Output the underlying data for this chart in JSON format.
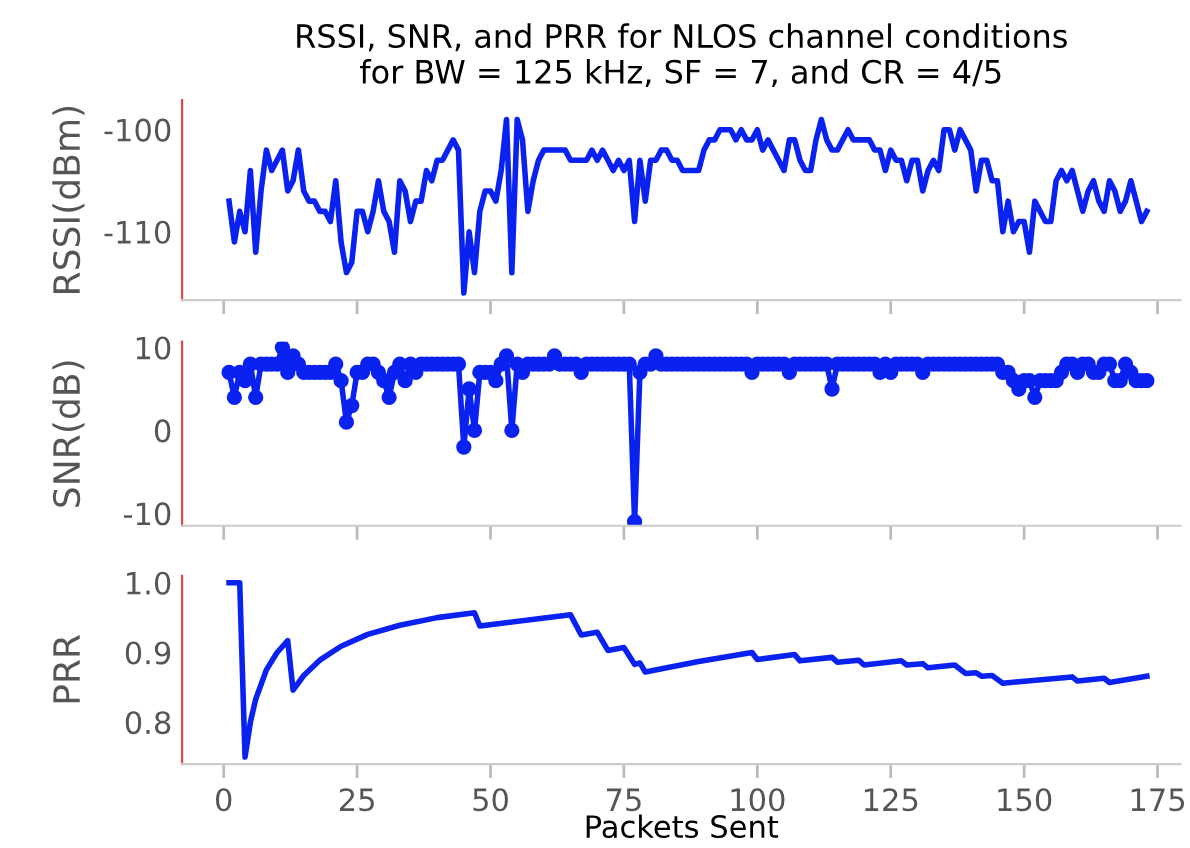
{
  "chart_data": [
    {
      "type": "line",
      "title": "RSSI, SNR, and PRR for NLOS channel conditions\nfor BW = 125 kHz, SF = 7, and CR = 4/5",
      "ylabel": "RSSI(dBm)",
      "x": [
        1,
        2,
        3,
        4,
        5,
        6,
        7,
        8,
        9,
        10,
        11,
        12,
        13,
        14,
        15,
        16,
        17,
        18,
        19,
        20,
        21,
        22,
        23,
        24,
        25,
        26,
        27,
        28,
        29,
        30,
        31,
        32,
        33,
        34,
        35,
        36,
        37,
        38,
        39,
        40,
        41,
        42,
        43,
        44,
        45,
        46,
        47,
        48,
        49,
        50,
        51,
        52,
        53,
        54,
        55,
        56,
        57,
        58,
        59,
        60,
        61,
        62,
        63,
        64,
        65,
        66,
        67,
        68,
        69,
        70,
        71,
        72,
        73,
        74,
        75,
        76,
        77,
        78,
        79,
        80,
        81,
        82,
        83,
        84,
        85,
        86,
        87,
        88,
        89,
        90,
        91,
        92,
        93,
        94,
        95,
        96,
        97,
        98,
        99,
        100,
        101,
        102,
        103,
        104,
        105,
        106,
        107,
        108,
        109,
        110,
        111,
        112,
        113,
        114,
        115,
        116,
        117,
        118,
        119,
        120,
        121,
        122,
        123,
        124,
        125,
        126,
        127,
        128,
        129,
        130,
        131,
        132,
        133,
        134,
        135,
        136,
        137,
        138,
        139,
        140,
        141,
        142,
        143,
        144,
        145,
        146,
        147,
        148,
        149,
        150,
        151,
        152,
        153,
        154,
        155,
        156,
        157,
        158,
        159,
        160,
        161,
        162,
        163,
        164,
        165,
        166,
        167,
        168,
        169,
        170,
        171,
        172,
        173
      ],
      "series": [
        {
          "color": "#0a22f0",
          "values": [
            -107,
            -111,
            -108,
            -110,
            -104,
            -112,
            -106,
            -102,
            -104,
            -103,
            -102,
            -106,
            -105,
            -102,
            -106,
            -107,
            -107,
            -108,
            -108,
            -109,
            -105,
            -111,
            -114,
            -113,
            -108,
            -108,
            -110,
            -108,
            -105,
            -108,
            -109,
            -112,
            -105,
            -106,
            -109,
            -107,
            -107,
            -104,
            -105,
            -103,
            -103,
            -102,
            -101,
            -102,
            -116,
            -110,
            -114,
            -108,
            -106,
            -106,
            -107,
            -104,
            -99,
            -114,
            -99,
            -101,
            -108,
            -105,
            -103,
            -102,
            -102,
            -102,
            -102,
            -102,
            -103,
            -103,
            -103,
            -103,
            -102,
            -103,
            -102,
            -103,
            -104,
            -103,
            -104,
            -103,
            -109,
            -103,
            -107,
            -103,
            -103,
            -102,
            -102,
            -103,
            -103,
            -104,
            -104,
            -104,
            -104,
            -102,
            -101,
            -101,
            -100,
            -100,
            -100,
            -101,
            -100,
            -101,
            -101,
            -100,
            -102,
            -101,
            -102,
            -103,
            -104,
            -101,
            -101,
            -103,
            -104,
            -104,
            -101,
            -99,
            -101,
            -102,
            -102,
            -101,
            -100,
            -101,
            -101,
            -101,
            -101,
            -102,
            -102,
            -104,
            -102,
            -103,
            -103,
            -105,
            -103,
            -103,
            -106,
            -104,
            -103,
            -104,
            -100,
            -100,
            -102,
            -100,
            -101,
            -102,
            -106,
            -103,
            -103,
            -105,
            -105,
            -110,
            -107,
            -110,
            -109,
            -109,
            -112,
            -107,
            -108,
            -109,
            -109,
            -105,
            -104,
            -105,
            -104,
            -106,
            -108,
            -106,
            -105,
            -107,
            -108,
            -105,
            -106,
            -108,
            -107,
            -105,
            -107,
            -109,
            -108
          ]
        }
      ],
      "xlim": [
        -7.8,
        179.3
      ],
      "xticks": [
        0,
        25,
        50,
        75,
        100,
        125,
        150,
        175
      ],
      "ylim": [
        -116.7,
        -97.1
      ],
      "yticks": [
        -110,
        -100
      ],
      "tick_labels": "y",
      "grid": false,
      "legend": false
    },
    {
      "type": "line",
      "ylabel": "SNR(dB)",
      "marker": "circle",
      "x": [
        1,
        2,
        3,
        4,
        5,
        6,
        7,
        8,
        9,
        10,
        11,
        12,
        13,
        14,
        15,
        16,
        17,
        18,
        19,
        20,
        21,
        22,
        23,
        24,
        25,
        26,
        27,
        28,
        29,
        30,
        31,
        32,
        33,
        34,
        35,
        36,
        37,
        38,
        39,
        40,
        41,
        42,
        43,
        44,
        45,
        46,
        47,
        48,
        49,
        50,
        51,
        52,
        53,
        54,
        55,
        56,
        57,
        58,
        59,
        60,
        61,
        62,
        63,
        64,
        65,
        66,
        67,
        68,
        69,
        70,
        71,
        72,
        73,
        74,
        75,
        76,
        77,
        78,
        79,
        80,
        81,
        82,
        83,
        84,
        85,
        86,
        87,
        88,
        89,
        90,
        91,
        92,
        93,
        94,
        95,
        96,
        97,
        98,
        99,
        100,
        101,
        102,
        103,
        104,
        105,
        106,
        107,
        108,
        109,
        110,
        111,
        112,
        113,
        114,
        115,
        116,
        117,
        118,
        119,
        120,
        121,
        122,
        123,
        124,
        125,
        126,
        127,
        128,
        129,
        130,
        131,
        132,
        133,
        134,
        135,
        136,
        137,
        138,
        139,
        140,
        141,
        142,
        143,
        144,
        145,
        146,
        147,
        148,
        149,
        150,
        151,
        152,
        153,
        154,
        155,
        156,
        157,
        158,
        159,
        160,
        161,
        162,
        163,
        164,
        165,
        166,
        167,
        168,
        169,
        170,
        171,
        172,
        173
      ],
      "series": [
        {
          "color": "#0a22f0",
          "values": [
            7,
            4,
            7,
            6,
            8,
            4,
            8,
            8,
            8,
            8,
            10,
            7,
            9,
            8,
            7,
            7,
            7,
            7,
            7,
            7,
            8,
            6,
            1,
            3,
            7,
            7,
            8,
            8,
            7,
            6,
            4,
            7,
            8,
            6,
            8,
            7,
            8,
            8,
            8,
            8,
            8,
            8,
            8,
            8,
            -2,
            5,
            0,
            7,
            7,
            7,
            6,
            8,
            9,
            0,
            8,
            7,
            8,
            8,
            8,
            8,
            8,
            9,
            8,
            8,
            8,
            8,
            7,
            8,
            8,
            8,
            8,
            8,
            8,
            8,
            8,
            8,
            -11,
            7,
            8,
            8,
            9,
            8,
            8,
            8,
            8,
            8,
            8,
            8,
            8,
            8,
            8,
            8,
            8,
            8,
            8,
            8,
            8,
            8,
            7,
            8,
            8,
            8,
            8,
            8,
            8,
            7,
            8,
            8,
            8,
            8,
            8,
            8,
            8,
            5,
            8,
            8,
            8,
            8,
            8,
            8,
            8,
            8,
            7,
            8,
            7,
            8,
            8,
            8,
            8,
            8,
            7,
            8,
            8,
            8,
            8,
            8,
            8,
            8,
            8,
            8,
            8,
            8,
            8,
            8,
            8,
            7,
            7,
            6,
            5,
            6,
            6,
            4,
            6,
            6,
            6,
            6,
            7,
            8,
            8,
            7,
            8,
            8,
            7,
            7,
            8,
            8,
            6,
            6,
            8,
            7,
            6,
            6,
            6
          ]
        }
      ],
      "xlim": [
        -7.8,
        179.3
      ],
      "xticks": [
        0,
        25,
        50,
        75,
        100,
        125,
        150,
        175
      ],
      "ylim": [
        -11.5,
        10.7
      ],
      "yticks": [
        -10,
        0,
        10
      ],
      "tick_labels": "y",
      "grid": false,
      "legend": false
    },
    {
      "type": "line",
      "ylabel": "PRR",
      "xlabel": "Packets Sent",
      "x": [
        1,
        3,
        4,
        5,
        6,
        8,
        10,
        12,
        13,
        15,
        18,
        22,
        27,
        33,
        40,
        47,
        48,
        65,
        67,
        70,
        72,
        75,
        77,
        78,
        79,
        89,
        99,
        100,
        107,
        108,
        114,
        115,
        119,
        120,
        127,
        128,
        131,
        132,
        137,
        139,
        141,
        142,
        144,
        146,
        159,
        160,
        165,
        166,
        173
      ],
      "series": [
        {
          "color": "#0a22f0",
          "values": [
            1.0,
            1.0,
            0.75,
            0.8,
            0.833,
            0.875,
            0.9,
            0.917,
            0.846,
            0.867,
            0.889,
            0.909,
            0.926,
            0.939,
            0.95,
            0.957,
            0.938,
            0.954,
            0.925,
            0.929,
            0.903,
            0.907,
            0.883,
            0.885,
            0.872,
            0.887,
            0.9,
            0.89,
            0.897,
            0.888,
            0.893,
            0.886,
            0.889,
            0.882,
            0.888,
            0.882,
            0.884,
            0.878,
            0.882,
            0.87,
            0.871,
            0.866,
            0.867,
            0.856,
            0.865,
            0.859,
            0.863,
            0.857,
            0.866
          ]
        }
      ],
      "xlim": [
        -7.8,
        179.3
      ],
      "xticks": [
        0,
        25,
        50,
        75,
        100,
        125,
        150,
        175
      ],
      "ylim": [
        0.74,
        1.01
      ],
      "yticks": [
        {
          "value": 0.8,
          "label": "0.8"
        },
        {
          "value": 0.9,
          "label": "0.9"
        },
        {
          "value": 1.0,
          "label": "1.0"
        }
      ],
      "grid": false,
      "legend": false
    }
  ]
}
